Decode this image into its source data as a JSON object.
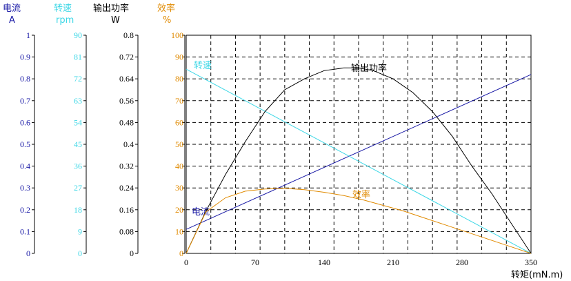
{
  "colors": {
    "current": "#1a1aa6",
    "speed": "#3cd7e6",
    "power": "#000000",
    "efficiency": "#e08a00",
    "grid": "#000000"
  },
  "chart_data": {
    "type": "line",
    "xlabel": "转矩(mN.m)",
    "xlim": [
      0,
      350
    ],
    "x_ticks": [
      "0",
      "70",
      "140",
      "210",
      "280",
      "350"
    ],
    "grid": true,
    "axes": [
      {
        "key": "current",
        "title": "电流",
        "unit": "A",
        "ylim": [
          0,
          1
        ],
        "ticks": [
          "0",
          "0.1",
          "0.2",
          "0.3",
          "0.4",
          "0.5",
          "0.6",
          "0.7",
          "0.8",
          "0.9",
          "1"
        ]
      },
      {
        "key": "speed",
        "title": "转速",
        "unit": "rpm",
        "ylim": [
          0,
          90
        ],
        "ticks": [
          "0",
          "9",
          "18",
          "27",
          "36",
          "45",
          "54",
          "63",
          "72",
          "81",
          "90"
        ]
      },
      {
        "key": "power",
        "title": "输出功率",
        "unit": "W",
        "ylim": [
          0,
          0.8
        ],
        "ticks": [
          "0",
          "0.08",
          "0.16",
          "0.24",
          "0.32",
          "0.4",
          "0.48",
          "0.56",
          "0.64",
          "0.72",
          "0.8"
        ]
      },
      {
        "key": "efficiency",
        "title": "效率",
        "unit": "%",
        "ylim": [
          0,
          100
        ],
        "ticks": [
          "0",
          "10",
          "20",
          "30",
          "40",
          "50",
          "60",
          "70",
          "80",
          "90",
          "100"
        ]
      }
    ],
    "series": [
      {
        "key": "current",
        "name": "电流",
        "axis": "current",
        "x": [
          0,
          350
        ],
        "y": [
          0.11,
          0.82
        ]
      },
      {
        "key": "speed",
        "name": "转速",
        "axis": "speed",
        "x": [
          0,
          350
        ],
        "y": [
          76,
          0
        ]
      },
      {
        "key": "power",
        "name": "输出功率",
        "axis": "power",
        "x": [
          0,
          20,
          40,
          60,
          80,
          100,
          120,
          140,
          160,
          175,
          190,
          210,
          230,
          250,
          270,
          290,
          310,
          330,
          350
        ],
        "y": [
          0,
          0.155,
          0.29,
          0.41,
          0.52,
          0.6,
          0.64,
          0.67,
          0.68,
          0.68,
          0.67,
          0.64,
          0.59,
          0.52,
          0.43,
          0.32,
          0.22,
          0.11,
          0
        ]
      },
      {
        "key": "efficiency",
        "name": "效率",
        "axis": "efficiency",
        "x": [
          0,
          20,
          40,
          60,
          80,
          100,
          120,
          140,
          160,
          180,
          200,
          220,
          240,
          260,
          280,
          300,
          320,
          340,
          350
        ],
        "y": [
          0,
          19,
          25.5,
          28.5,
          29.5,
          29.8,
          29.2,
          28,
          26.5,
          24.5,
          22,
          19.5,
          16.5,
          13.5,
          10.5,
          7.5,
          4.5,
          1.5,
          0
        ]
      }
    ]
  }
}
